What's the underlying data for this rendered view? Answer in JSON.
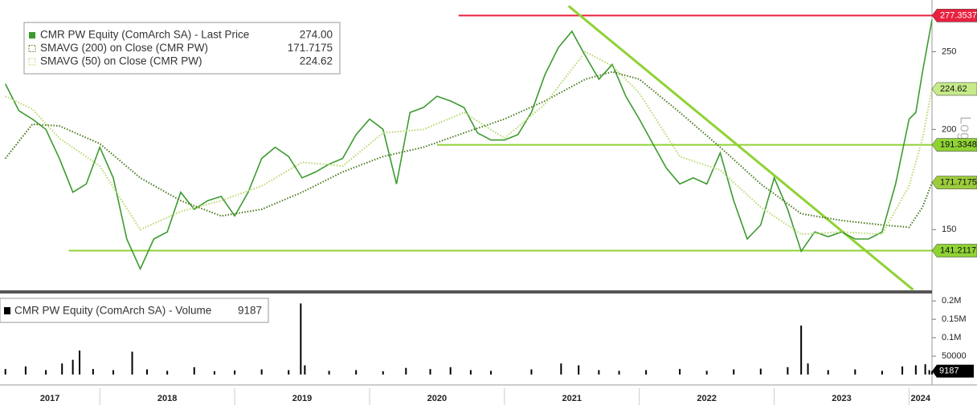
{
  "chart_data": [
    {
      "type": "line",
      "log_scale": true,
      "xlim": [
        2017.26,
        2024.17
      ],
      "xticks": [
        2018,
        2019,
        2020,
        2021,
        2022,
        2023,
        2024
      ],
      "x_labels": [
        "2017",
        "2018",
        "2019",
        "2020",
        "2021",
        "2022",
        "2023",
        "2024"
      ],
      "ylim": [
        126,
        290
      ],
      "yticks": [
        150,
        200,
        250
      ],
      "y_axis_label": "Log",
      "series": [
        {
          "name": "CMR PW Equity (ComArch SA) - Last Price",
          "last": 274,
          "last_label": "274.00",
          "color": "#3c9a2f",
          "style": "solid",
          "x": [
            2017.3,
            2017.4,
            2017.5,
            2017.6,
            2017.7,
            2017.8,
            2017.9,
            2018.0,
            2018.1,
            2018.2,
            2018.3,
            2018.4,
            2018.5,
            2018.6,
            2018.7,
            2018.8,
            2018.9,
            2019.0,
            2019.1,
            2019.2,
            2019.3,
            2019.4,
            2019.5,
            2019.6,
            2019.7,
            2019.8,
            2019.9,
            2020.0,
            2020.1,
            2020.2,
            2020.3,
            2020.4,
            2020.5,
            2020.6,
            2020.7,
            2020.8,
            2020.9,
            2021.0,
            2021.1,
            2021.2,
            2021.3,
            2021.4,
            2021.5,
            2021.6,
            2021.7,
            2021.8,
            2021.9,
            2022.0,
            2022.1,
            2022.2,
            2022.3,
            2022.4,
            2022.5,
            2022.6,
            2022.7,
            2022.8,
            2022.9,
            2023.0,
            2023.1,
            2023.2,
            2023.3,
            2023.4,
            2023.5,
            2023.6,
            2023.7,
            2023.8,
            2023.9,
            2024.0,
            2024.05,
            2024.1,
            2024.17
          ],
          "values": [
            228,
            211,
            206,
            200,
            184,
            167,
            171,
            190,
            174,
            146,
            134,
            146,
            149,
            167,
            159,
            163,
            165,
            156,
            167,
            184,
            190,
            185,
            174,
            177,
            181,
            184,
            197,
            206,
            200,
            171,
            210,
            213,
            220,
            217,
            213,
            198,
            194,
            194,
            197,
            210,
            234,
            253,
            265,
            247,
            231,
            241,
            220,
            206,
            192,
            179,
            171,
            174,
            171,
            187,
            163,
            146,
            152,
            174,
            159,
            141,
            149,
            147,
            149,
            146,
            146,
            149,
            171,
            206,
            210,
            236,
            274
          ]
        },
        {
          "name": "SMAVG (200)  on Close (CMR PW)",
          "last": 171.7175,
          "color": "#4a7a1e",
          "style": "dotted",
          "x": [
            2017.3,
            2017.5,
            2017.7,
            2018.0,
            2018.3,
            2018.6,
            2018.9,
            2019.2,
            2019.5,
            2019.8,
            2020.1,
            2020.4,
            2020.7,
            2021.0,
            2021.3,
            2021.6,
            2021.8,
            2022.0,
            2022.3,
            2022.6,
            2022.9,
            2023.2,
            2023.5,
            2023.8,
            2024.0,
            2024.1,
            2024.17
          ],
          "values": [
            184,
            203,
            202,
            192,
            174,
            163,
            156,
            159,
            167,
            177,
            185,
            190,
            198,
            206,
            217,
            231,
            236,
            231,
            210,
            190,
            171,
            157,
            154,
            152,
            151,
            160,
            171.7175
          ]
        },
        {
          "name": "SMAVG (50)  on Close (CMR PW)",
          "last": 224.62,
          "color": "#b5d96a",
          "style": "dotted",
          "x": [
            2017.3,
            2017.5,
            2017.7,
            2018.0,
            2018.3,
            2018.6,
            2018.9,
            2019.2,
            2019.5,
            2019.8,
            2020.1,
            2020.4,
            2020.7,
            2021.0,
            2021.3,
            2021.6,
            2021.8,
            2022.0,
            2022.3,
            2022.6,
            2022.9,
            2023.2,
            2023.5,
            2023.8,
            2024.0,
            2024.1,
            2024.17
          ],
          "values": [
            220,
            212,
            195,
            180,
            150,
            158,
            163,
            170,
            182,
            180,
            198,
            200,
            210,
            195,
            215,
            250,
            240,
            222,
            185,
            178,
            160,
            148,
            149,
            148,
            170,
            195,
            224.62
          ]
        }
      ],
      "levels": [
        {
          "value": 277.3537,
          "color": "#e8213f",
          "line_from": 2020.66
        },
        {
          "value": 224.62,
          "color": "#c6ea8a"
        },
        {
          "value": 191.3348,
          "color": "#8fd234",
          "line_from": 2020.5
        },
        {
          "value": 171.7175,
          "color": "#9ccc3c"
        },
        {
          "value": 141.2117,
          "color": "#8fd234",
          "line_from": 2017.77
        }
      ],
      "trendline": {
        "x": [
          2021.476,
          2024.03
        ],
        "y": [
          285,
          126.2
        ],
        "color": "#8fd234"
      }
    },
    {
      "type": "bar",
      "name": "CMR PW Equity (ComArch SA) - Volume",
      "last": 9187,
      "color": "#000000",
      "ylim": [
        0,
        220000
      ],
      "yticks": [
        {
          "value": 200000,
          "label": "0.2M"
        },
        {
          "value": 150000,
          "label": "0.15M"
        },
        {
          "value": 100000,
          "label": "0.1M"
        },
        50000
      ],
      "x": [
        2017.3,
        2017.45,
        2017.6,
        2017.72,
        2017.8,
        2017.85,
        2017.95,
        2018.1,
        2018.24,
        2018.35,
        2018.5,
        2018.7,
        2018.85,
        2019.0,
        2019.2,
        2019.4,
        2019.49,
        2019.52,
        2019.7,
        2019.9,
        2020.1,
        2020.27,
        2020.45,
        2020.6,
        2020.75,
        2020.9,
        2021.2,
        2021.42,
        2021.55,
        2021.7,
        2021.85,
        2022.05,
        2022.3,
        2022.5,
        2022.7,
        2022.9,
        2023.1,
        2023.2,
        2023.25,
        2023.4,
        2023.6,
        2023.8,
        2023.95,
        2024.05,
        2024.12,
        2024.15,
        2024.17
      ],
      "values": [
        15000,
        22000,
        12000,
        30000,
        40000,
        65000,
        15000,
        12000,
        62000,
        14000,
        10000,
        20000,
        9000,
        11000,
        14000,
        12000,
        193000,
        25000,
        10000,
        12000,
        9000,
        18000,
        15000,
        20000,
        12000,
        10000,
        14000,
        30000,
        25000,
        12000,
        10000,
        12000,
        15000,
        10000,
        14000,
        16000,
        20000,
        133000,
        30000,
        12000,
        14000,
        10000,
        22000,
        25000,
        28000,
        12000,
        9187
      ]
    }
  ]
}
